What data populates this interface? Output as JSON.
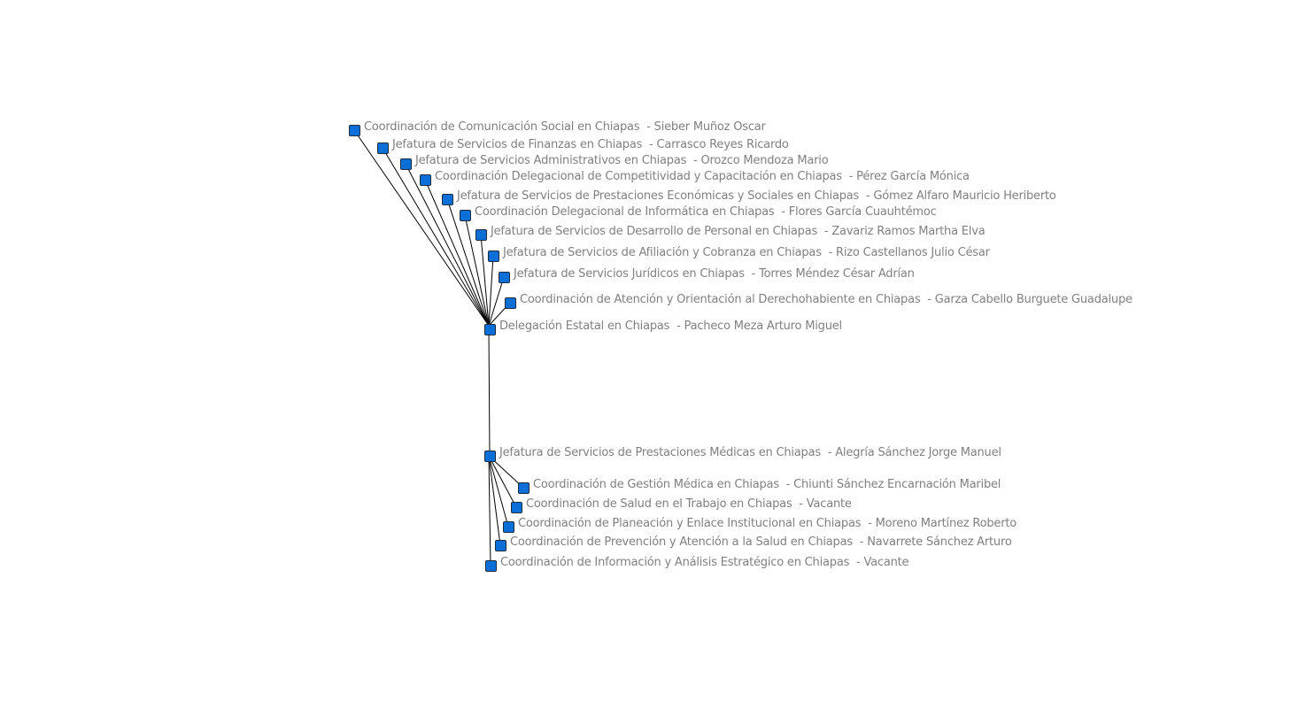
{
  "diagram": {
    "type": "org-network",
    "node_color": "#0a6fd6",
    "edge_color": "#000000",
    "label_color": "#808080",
    "root": {
      "id": "delegacion",
      "label": "Delegación Estatal en Chiapas  - Pacheco Meza Arturo Miguel"
    },
    "nodes": [
      {
        "id": "n1",
        "label": "Coordinación de Comunicación Social en Chiapas  - Sieber Muñoz Oscar",
        "parent": "delegacion"
      },
      {
        "id": "n2",
        "label": "Jefatura de Servicios de Finanzas en Chiapas  - Carrasco Reyes Ricardo",
        "parent": "delegacion"
      },
      {
        "id": "n3",
        "label": "Jefatura de Servicios Administrativos en Chiapas  - Orozco Mendoza Mario",
        "parent": "delegacion"
      },
      {
        "id": "n4",
        "label": "Coordinación Delegacional de Competitividad y Capacitación en Chiapas  - Pérez García Mónica",
        "parent": "delegacion"
      },
      {
        "id": "n5",
        "label": "Jefatura de Servicios de Prestaciones Económicas y Sociales en Chiapas  - Gómez Alfaro Mauricio Heriberto",
        "parent": "delegacion"
      },
      {
        "id": "n6",
        "label": "Coordinación Delegacional de Informática en Chiapas  - Flores García Cuauhtémoc",
        "parent": "delegacion"
      },
      {
        "id": "n7",
        "label": "Jefatura de Servicios de Desarrollo de Personal en Chiapas  - Zavariz Ramos Martha Elva",
        "parent": "delegacion"
      },
      {
        "id": "n8",
        "label": "Jefatura de Servicios de Afiliación y Cobranza en Chiapas  - Rizo Castellanos Julio César",
        "parent": "delegacion"
      },
      {
        "id": "n9",
        "label": "Jefatura de Servicios Jurídicos en Chiapas  - Torres Méndez César Adrían",
        "parent": "delegacion"
      },
      {
        "id": "n10",
        "label": "Coordinación de Atención y Orientación al Derechohabiente en Chiapas  - Garza Cabello Burguete Guadalupe",
        "parent": "delegacion"
      },
      {
        "id": "med",
        "label": "Jefatura de Servicios de Prestaciones Médicas en Chiapas  - Alegría Sánchez Jorge Manuel",
        "parent": "delegacion"
      },
      {
        "id": "m1",
        "label": "Coordinación de Gestión Médica en Chiapas  - Chiunti Sánchez Encarnación Maribel",
        "parent": "med"
      },
      {
        "id": "m2",
        "label": "Coordinación de Salud en el Trabajo en Chiapas  - Vacante",
        "parent": "med"
      },
      {
        "id": "m3",
        "label": "Coordinación de Planeación y Enlace Institucional en Chiapas  - Moreno Martínez Roberto",
        "parent": "med"
      },
      {
        "id": "m4",
        "label": "Coordinación de Prevención y Atención a la Salud en Chiapas  - Navarrete Sánchez Arturo",
        "parent": "med"
      },
      {
        "id": "m5",
        "label": "Coordinación de Información y Análisis Estratégico en Chiapas  - Vacante",
        "parent": "med"
      }
    ]
  }
}
